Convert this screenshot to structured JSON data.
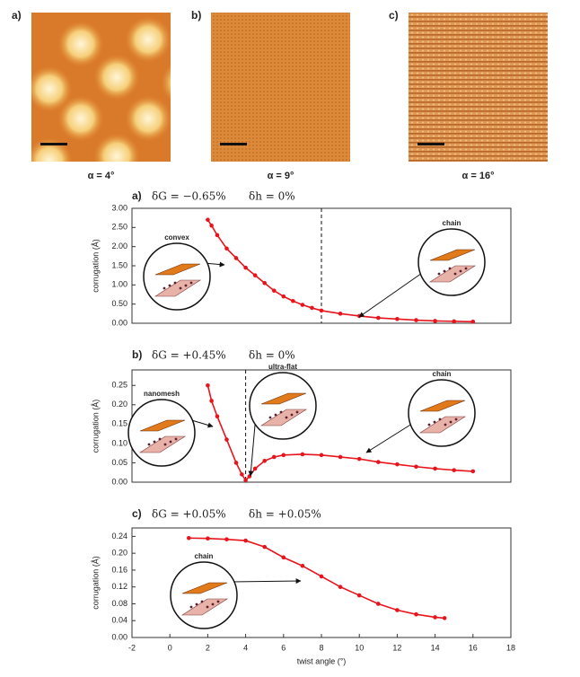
{
  "images": [
    {
      "label": "a)",
      "caption": "α = 4°"
    },
    {
      "label": "b)",
      "caption": "α = 9°"
    },
    {
      "label": "c)",
      "caption": "α = 16°"
    }
  ],
  "chart_data": [
    {
      "type": "line",
      "label": "a)",
      "annotations": [
        "δG = −0.65%",
        "δh = 0%"
      ],
      "bubbles": [
        "convex",
        "chain"
      ],
      "ylabel": "corrugation (Å)",
      "color": "#e8141c",
      "x": [
        2,
        2.2,
        2.5,
        3,
        3.5,
        4,
        4.5,
        5,
        5.5,
        6,
        6.5,
        7,
        7.5,
        8,
        9,
        10,
        11,
        12,
        13,
        14,
        15,
        16
      ],
      "values": [
        2.7,
        2.55,
        2.3,
        1.95,
        1.7,
        1.45,
        1.25,
        1.05,
        0.85,
        0.7,
        0.58,
        0.48,
        0.4,
        0.33,
        0.25,
        0.19,
        0.14,
        0.11,
        0.08,
        0.06,
        0.05,
        0.04
      ],
      "xlim": [
        -2,
        18
      ],
      "ylim": [
        0,
        3
      ],
      "yticks": [
        {
          "value": 0,
          "label": "0.00"
        },
        {
          "value": 0.5,
          "label": "0.50"
        },
        {
          "value": 1,
          "label": "1.00"
        },
        {
          "value": 1.5,
          "label": "1.50"
        },
        {
          "value": 2,
          "label": "2.00"
        },
        {
          "value": 2.5,
          "label": "2.50"
        },
        {
          "value": 3,
          "label": "3.00"
        }
      ],
      "vline": 8
    },
    {
      "type": "line",
      "label": "b)",
      "annotations": [
        "δG = +0.45%",
        "δh = 0%"
      ],
      "bubbles": [
        "nanomesh",
        "ultra-flat",
        "chain"
      ],
      "ylabel": "corrugation (Å)",
      "color": "#e8141c",
      "x": [
        2,
        2.2,
        2.5,
        3,
        3.5,
        3.8,
        4,
        4.2,
        4.5,
        5,
        5.5,
        6,
        7,
        8,
        9,
        10,
        11,
        12,
        13,
        14,
        15,
        16
      ],
      "values": [
        0.25,
        0.21,
        0.17,
        0.11,
        0.05,
        0.02,
        0.005,
        0.015,
        0.035,
        0.055,
        0.065,
        0.07,
        0.072,
        0.07,
        0.065,
        0.06,
        0.052,
        0.046,
        0.04,
        0.035,
        0.031,
        0.028
      ],
      "xlim": [
        -2,
        18
      ],
      "ylim": [
        0,
        0.29
      ],
      "yticks": [
        {
          "value": 0,
          "label": "0.00"
        },
        {
          "value": 0.05,
          "label": "0.05"
        },
        {
          "value": 0.1,
          "label": "0.10"
        },
        {
          "value": 0.15,
          "label": "0.15"
        },
        {
          "value": 0.2,
          "label": "0.20"
        },
        {
          "value": 0.25,
          "label": "0.25"
        }
      ],
      "vline": 4
    },
    {
      "type": "line",
      "label": "c)",
      "annotations": [
        "δG = +0.05%",
        "δh = +0.05%"
      ],
      "bubbles": [
        "chain"
      ],
      "ylabel": "corrugation (Å)",
      "xlabel": "twist angle (°)",
      "color": "#e8141c",
      "x": [
        1,
        2,
        3,
        4,
        5,
        6,
        7,
        8,
        9,
        10,
        11,
        12,
        13,
        14,
        14.5
      ],
      "values": [
        0.236,
        0.235,
        0.233,
        0.23,
        0.215,
        0.19,
        0.17,
        0.145,
        0.12,
        0.1,
        0.08,
        0.065,
        0.055,
        0.048,
        0.046
      ],
      "xlim": [
        -2,
        18
      ],
      "ylim": [
        0,
        0.26
      ],
      "xticks": [
        -2,
        0,
        2,
        4,
        6,
        8,
        10,
        12,
        14,
        16,
        18
      ],
      "yticks": [
        {
          "value": 0,
          "label": "0.00"
        },
        {
          "value": 0.04,
          "label": "0.04"
        },
        {
          "value": 0.08,
          "label": "0.08"
        },
        {
          "value": 0.12,
          "label": "0.12"
        },
        {
          "value": 0.16,
          "label": "0.16"
        },
        {
          "value": 0.2,
          "label": "0.20"
        },
        {
          "value": 0.24,
          "label": "0.24"
        }
      ]
    }
  ]
}
